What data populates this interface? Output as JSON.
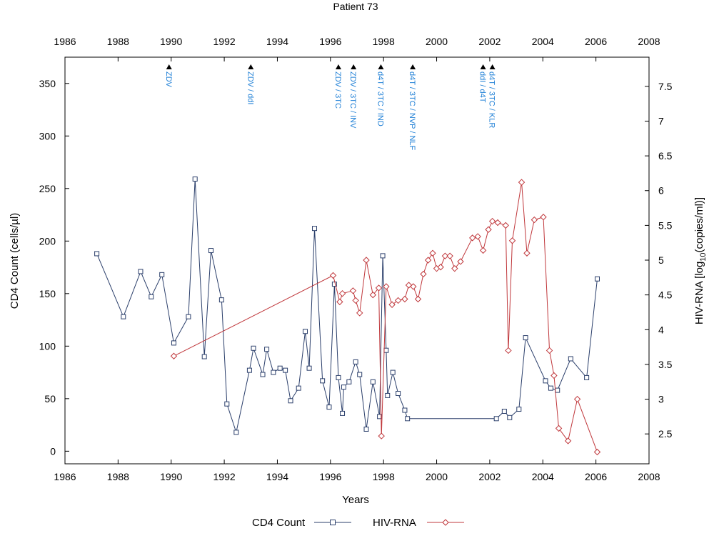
{
  "chart_data": {
    "type": "line",
    "title": "Patient 73",
    "xlabel": "Years",
    "ylabel_left": "CD4 Count  (cells/µl)",
    "ylabel_right_prefix": "HIV-RNA  [log",
    "ylabel_right_sub": "10",
    "ylabel_right_suffix": "(copies/ml)]",
    "xlim": [
      1986,
      2008
    ],
    "ylim_left": [
      -12,
      375
    ],
    "ylim_right": [
      2.07,
      7.92
    ],
    "x_ticks": [
      1986,
      1988,
      1990,
      1992,
      1994,
      1996,
      1998,
      2000,
      2002,
      2004,
      2006,
      2008
    ],
    "x_tick_labels": [
      "1986",
      "1988",
      "1990",
      "1992",
      "1994",
      "1996",
      "1998",
      "2000",
      "2002",
      "2004",
      "2006",
      "2008"
    ],
    "y_left_ticks": [
      0,
      50,
      100,
      150,
      200,
      250,
      300,
      350
    ],
    "y_left_tick_labels": [
      "0",
      "50",
      "100",
      "150",
      "200",
      "250",
      "300",
      "350"
    ],
    "y_right_ticks": [
      2.5,
      3,
      3.5,
      4,
      4.5,
      5,
      5.5,
      6,
      6.5,
      7,
      7.5
    ],
    "y_right_tick_labels": [
      "2.5",
      "3",
      "3.5",
      "4",
      "4.5",
      "5",
      "5.5",
      "6",
      "6.5",
      "7",
      "7.5"
    ],
    "grid": false,
    "legend_position": "bottom-center",
    "colors": {
      "cd4": "#2b3f6b",
      "rna": "#c0383c",
      "therapy": "#1e7fd6",
      "marker": "#000000"
    },
    "therapies": [
      {
        "x": 1989.92,
        "label": "ZDV"
      },
      {
        "x": 1993.0,
        "label": "ZDV / ddI"
      },
      {
        "x": 1996.3,
        "label": "ZDV / 3TC"
      },
      {
        "x": 1996.87,
        "label": "ZDV / 3TC / INV"
      },
      {
        "x": 1997.9,
        "label": "d4T / 3TC / IND"
      },
      {
        "x": 1999.1,
        "label": "d4T / 3TC / NVP / NLF"
      },
      {
        "x": 2001.75,
        "label": "ddI / d4T"
      },
      {
        "x": 2002.1,
        "label": "d4T / 3TC / KLR"
      }
    ],
    "series": [
      {
        "name": "CD4 Count",
        "axis": "left",
        "marker": "square",
        "points": [
          [
            1987.2,
            188
          ],
          [
            1988.2,
            128
          ],
          [
            1988.85,
            171
          ],
          [
            1989.25,
            147
          ],
          [
            1989.65,
            168
          ],
          [
            1990.1,
            103
          ],
          [
            1990.65,
            128
          ],
          [
            1990.9,
            259
          ],
          [
            1991.25,
            90
          ],
          [
            1991.5,
            191
          ],
          [
            1991.9,
            144
          ],
          [
            1992.1,
            45
          ],
          [
            1992.45,
            18
          ],
          [
            1992.95,
            77
          ],
          [
            1993.1,
            98
          ],
          [
            1993.45,
            73
          ],
          [
            1993.6,
            97
          ],
          [
            1993.85,
            75
          ],
          [
            1994.1,
            79
          ],
          [
            1994.3,
            77
          ],
          [
            1994.5,
            48
          ],
          [
            1994.8,
            60
          ],
          [
            1995.05,
            114
          ],
          [
            1995.2,
            79
          ],
          [
            1995.4,
            212
          ],
          [
            1995.7,
            67
          ],
          [
            1995.95,
            42
          ],
          [
            1996.15,
            159
          ],
          [
            1996.3,
            70
          ],
          [
            1996.45,
            36
          ],
          [
            1996.5,
            61
          ],
          [
            1996.7,
            66
          ],
          [
            1996.95,
            85
          ],
          [
            1997.1,
            73
          ],
          [
            1997.35,
            21
          ],
          [
            1997.6,
            66
          ],
          [
            1997.85,
            33
          ],
          [
            1997.97,
            186
          ],
          [
            1998.1,
            96
          ],
          [
            1998.15,
            53
          ],
          [
            1998.35,
            75
          ],
          [
            1998.55,
            55
          ],
          [
            1998.8,
            39
          ],
          [
            1998.9,
            31
          ],
          [
            2002.25,
            31
          ],
          [
            2002.55,
            38
          ],
          [
            2002.75,
            32
          ],
          [
            2003.1,
            40
          ],
          [
            2003.35,
            108
          ],
          [
            2004.1,
            67
          ],
          [
            2004.3,
            60
          ],
          [
            2004.55,
            58
          ],
          [
            2005.05,
            88
          ],
          [
            2005.65,
            70
          ],
          [
            2006.05,
            164
          ]
        ]
      },
      {
        "name": "HIV-RNA",
        "axis": "right",
        "marker": "diamond",
        "points": [
          [
            1990.1,
            3.62
          ],
          [
            1996.1,
            4.78
          ],
          [
            1996.35,
            4.4
          ],
          [
            1996.45,
            4.52
          ],
          [
            1996.85,
            4.56
          ],
          [
            1996.95,
            4.42
          ],
          [
            1997.1,
            4.24
          ],
          [
            1997.35,
            5.0
          ],
          [
            1997.6,
            4.5
          ],
          [
            1997.82,
            4.6
          ],
          [
            1997.92,
            2.47
          ],
          [
            1998.1,
            4.62
          ],
          [
            1998.32,
            4.36
          ],
          [
            1998.55,
            4.42
          ],
          [
            1998.8,
            4.44
          ],
          [
            1998.95,
            4.64
          ],
          [
            1999.12,
            4.62
          ],
          [
            1999.3,
            4.44
          ],
          [
            1999.5,
            4.8
          ],
          [
            1999.68,
            5.0
          ],
          [
            1999.85,
            5.1
          ],
          [
            2000.0,
            4.88
          ],
          [
            2000.15,
            4.9
          ],
          [
            2000.32,
            5.06
          ],
          [
            2000.5,
            5.06
          ],
          [
            2000.68,
            4.88
          ],
          [
            2000.9,
            4.98
          ],
          [
            2001.35,
            5.32
          ],
          [
            2001.55,
            5.34
          ],
          [
            2001.75,
            5.14
          ],
          [
            2001.95,
            5.44
          ],
          [
            2002.1,
            5.56
          ],
          [
            2002.3,
            5.54
          ],
          [
            2002.6,
            5.5
          ],
          [
            2002.7,
            3.7
          ],
          [
            2002.85,
            5.28
          ],
          [
            2003.2,
            6.12
          ],
          [
            2003.4,
            5.1
          ],
          [
            2003.68,
            5.58
          ],
          [
            2004.02,
            5.62
          ],
          [
            2004.25,
            3.7
          ],
          [
            2004.42,
            3.34
          ],
          [
            2004.6,
            2.58
          ],
          [
            2004.95,
            2.4
          ],
          [
            2005.3,
            3.0
          ],
          [
            2006.05,
            2.24
          ]
        ]
      }
    ]
  },
  "legend": {
    "items": [
      {
        "label": "CD4 Count",
        "marker": "square"
      },
      {
        "label": "HIV-RNA",
        "marker": "diamond"
      }
    ]
  }
}
